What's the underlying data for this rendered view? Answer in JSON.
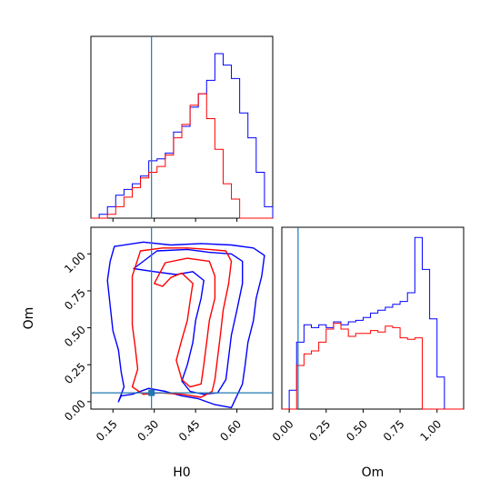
{
  "chart_data": {
    "type": "corner",
    "parameters": [
      "H0",
      "Om"
    ],
    "colors": {
      "series_a": "#0000ff",
      "series_b": "#ff0000",
      "truth": "#1f77b4"
    },
    "truth": {
      "H0": 0.29,
      "Om": 0.06
    },
    "h0_axis": {
      "label": "H0",
      "range": [
        0.07,
        0.73
      ],
      "ticks": [
        0.15,
        0.3,
        0.45,
        0.6
      ],
      "tick_labels": [
        "0.15",
        "0.30",
        "0.45",
        "0.60"
      ]
    },
    "om_axis": {
      "label": "Om",
      "range": [
        -0.05,
        1.18
      ],
      "ticks": [
        0.0,
        0.25,
        0.5,
        0.75,
        1.0
      ],
      "tick_labels": [
        "0.00",
        "0.25",
        "0.50",
        "0.75",
        "1.00"
      ]
    },
    "om_hist_axis": {
      "label": "Om",
      "range": [
        -0.05,
        1.18
      ],
      "ticks": [
        0.0,
        0.25,
        0.5,
        0.75,
        1.0
      ],
      "tick_labels": [
        "0.00",
        "0.25",
        "0.50",
        "0.75",
        "1.00"
      ]
    },
    "hist_h0": {
      "edges": [
        0.07,
        0.1,
        0.13,
        0.16,
        0.19,
        0.22,
        0.25,
        0.28,
        0.31,
        0.34,
        0.37,
        0.4,
        0.43,
        0.46,
        0.49,
        0.52,
        0.55,
        0.58,
        0.61,
        0.64,
        0.67,
        0.7,
        0.73
      ],
      "series_a": [
        0,
        2,
        6,
        12,
        15,
        18,
        22,
        30,
        31,
        34,
        45,
        48,
        58,
        65,
        72,
        86,
        80,
        73,
        55,
        42,
        24,
        6
      ],
      "series_b": [
        0,
        0,
        2,
        6,
        11,
        16,
        21,
        24,
        27,
        33,
        42,
        49,
        59,
        65,
        52,
        36,
        18,
        10,
        0,
        0,
        0,
        0
      ],
      "ymax": 95
    },
    "hist_om": {
      "edges": [
        -0.05,
        0.0,
        0.05,
        0.1,
        0.15,
        0.2,
        0.25,
        0.3,
        0.35,
        0.4,
        0.45,
        0.5,
        0.55,
        0.6,
        0.65,
        0.7,
        0.75,
        0.8,
        0.85,
        0.9,
        0.95,
        1.0,
        1.05,
        1.1,
        1.15,
        1.18
      ],
      "series_a": [
        0,
        13,
        46,
        58,
        56,
        58,
        56,
        60,
        58,
        60,
        61,
        63,
        66,
        68,
        70,
        72,
        74,
        80,
        118,
        96,
        62,
        22,
        0,
        0,
        0
      ],
      "series_b": [
        0,
        0,
        30,
        38,
        40,
        46,
        55,
        59,
        55,
        50,
        52,
        52,
        54,
        53,
        57,
        56,
        49,
        48,
        49,
        0,
        0,
        0,
        0,
        0,
        0
      ],
      "ymax": 125
    },
    "contours": {
      "series_a": [
        [
          [
            0.155,
            1.05
          ],
          [
            0.26,
            1.08
          ],
          [
            0.36,
            1.06
          ],
          [
            0.47,
            1.07
          ],
          [
            0.58,
            1.06
          ],
          [
            0.66,
            1.04
          ],
          [
            0.7,
            0.99
          ],
          [
            0.69,
            0.85
          ],
          [
            0.67,
            0.7
          ],
          [
            0.66,
            0.55
          ],
          [
            0.64,
            0.4
          ],
          [
            0.63,
            0.25
          ],
          [
            0.62,
            0.12
          ],
          [
            0.6,
            0.04
          ],
          [
            0.58,
            -0.04
          ],
          [
            0.52,
            -0.02
          ],
          [
            0.46,
            0.02
          ],
          [
            0.4,
            0.04
          ],
          [
            0.34,
            0.07
          ],
          [
            0.28,
            0.09
          ],
          [
            0.22,
            0.05
          ],
          [
            0.18,
            0.04
          ],
          [
            0.17,
            0.0
          ],
          [
            0.19,
            0.1
          ],
          [
            0.18,
            0.2
          ],
          [
            0.17,
            0.35
          ],
          [
            0.15,
            0.48
          ],
          [
            0.14,
            0.65
          ],
          [
            0.13,
            0.82
          ],
          [
            0.14,
            0.95
          ],
          [
            0.155,
            1.05
          ]
        ],
        [
          [
            0.225,
            0.9
          ],
          [
            0.31,
            1.02
          ],
          [
            0.42,
            1.03
          ],
          [
            0.5,
            1.01
          ],
          [
            0.58,
            1.0
          ],
          [
            0.62,
            0.95
          ],
          [
            0.62,
            0.8
          ],
          [
            0.6,
            0.62
          ],
          [
            0.58,
            0.45
          ],
          [
            0.57,
            0.3
          ],
          [
            0.56,
            0.15
          ],
          [
            0.53,
            0.06
          ],
          [
            0.48,
            0.05
          ],
          [
            0.43,
            0.07
          ],
          [
            0.4,
            0.14
          ],
          [
            0.42,
            0.25
          ],
          [
            0.44,
            0.4
          ],
          [
            0.45,
            0.55
          ],
          [
            0.47,
            0.7
          ],
          [
            0.48,
            0.82
          ],
          [
            0.44,
            0.88
          ],
          [
            0.38,
            0.86
          ],
          [
            0.3,
            0.88
          ],
          [
            0.225,
            0.9
          ]
        ]
      ],
      "series_b": [
        [
          [
            0.25,
            1.02
          ],
          [
            0.33,
            1.04
          ],
          [
            0.42,
            1.04
          ],
          [
            0.5,
            1.03
          ],
          [
            0.56,
            1.02
          ],
          [
            0.58,
            0.95
          ],
          [
            0.57,
            0.8
          ],
          [
            0.55,
            0.62
          ],
          [
            0.54,
            0.45
          ],
          [
            0.53,
            0.3
          ],
          [
            0.52,
            0.15
          ],
          [
            0.51,
            0.07
          ],
          [
            0.47,
            0.03
          ],
          [
            0.4,
            0.05
          ],
          [
            0.32,
            0.06
          ],
          [
            0.26,
            0.05
          ],
          [
            0.22,
            0.1
          ],
          [
            0.24,
            0.22
          ],
          [
            0.23,
            0.38
          ],
          [
            0.22,
            0.52
          ],
          [
            0.22,
            0.7
          ],
          [
            0.22,
            0.85
          ],
          [
            0.25,
            1.02
          ]
        ],
        [
          [
            0.3,
            0.8
          ],
          [
            0.34,
            0.94
          ],
          [
            0.42,
            0.97
          ],
          [
            0.5,
            0.95
          ],
          [
            0.52,
            0.85
          ],
          [
            0.52,
            0.7
          ],
          [
            0.5,
            0.55
          ],
          [
            0.49,
            0.4
          ],
          [
            0.48,
            0.25
          ],
          [
            0.47,
            0.12
          ],
          [
            0.43,
            0.1
          ],
          [
            0.4,
            0.15
          ],
          [
            0.38,
            0.28
          ],
          [
            0.4,
            0.42
          ],
          [
            0.42,
            0.55
          ],
          [
            0.43,
            0.68
          ],
          [
            0.44,
            0.8
          ],
          [
            0.4,
            0.87
          ],
          [
            0.36,
            0.84
          ],
          [
            0.33,
            0.78
          ],
          [
            0.3,
            0.8
          ]
        ]
      ]
    }
  }
}
